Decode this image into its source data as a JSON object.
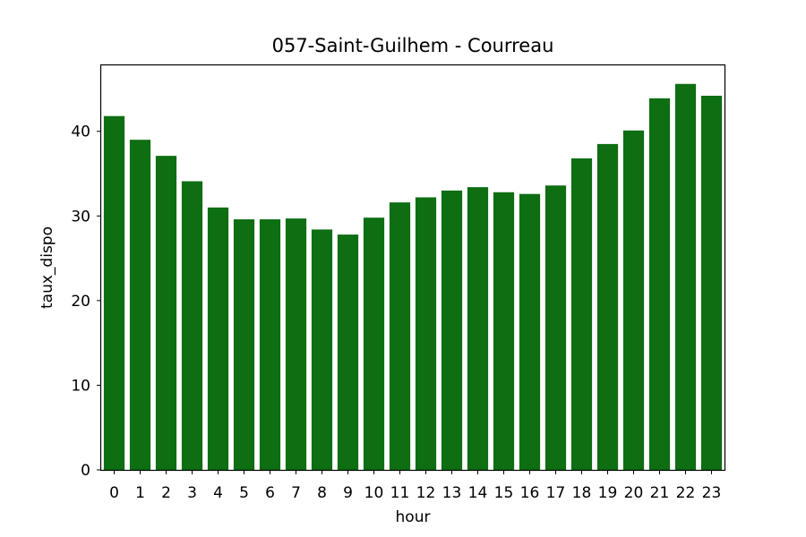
{
  "chart_data": {
    "type": "bar",
    "title": "057-Saint-Guilhem - Courreau",
    "xlabel": "hour",
    "ylabel": "taux_dispo",
    "categories": [
      "0",
      "1",
      "2",
      "3",
      "4",
      "5",
      "6",
      "7",
      "8",
      "9",
      "10",
      "11",
      "12",
      "13",
      "14",
      "15",
      "16",
      "17",
      "18",
      "19",
      "20",
      "21",
      "22",
      "23"
    ],
    "values": [
      41.8,
      39.0,
      37.1,
      34.1,
      31.0,
      29.6,
      29.6,
      29.7,
      28.4,
      27.8,
      29.8,
      31.6,
      32.2,
      33.0,
      33.4,
      32.8,
      32.6,
      33.6,
      36.8,
      38.5,
      40.1,
      43.9,
      45.6,
      44.2
    ],
    "ylim": [
      0,
      47.9
    ],
    "yticks": [
      0,
      10,
      20,
      30,
      40
    ],
    "grid": false,
    "bar_color": "#0e6e12"
  }
}
